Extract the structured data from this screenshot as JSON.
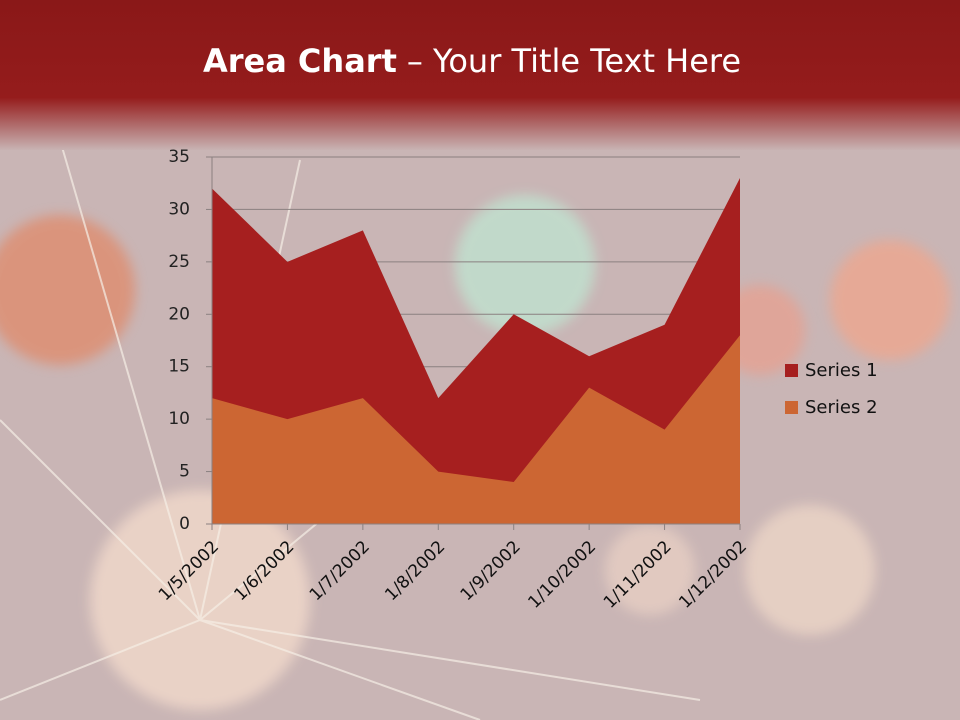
{
  "chart_data": {
    "type": "area",
    "title_bold": "Area Chart",
    "title": "– Your Title Text Here",
    "categories": [
      "1/5/2002",
      "1/6/2002",
      "1/7/2002",
      "1/8/2002",
      "1/9/2002",
      "1/10/2002",
      "1/11/2002",
      "1/12/2002"
    ],
    "series": [
      {
        "name": "Series 1",
        "color": "#a61f1f",
        "values": [
          32,
          25,
          28,
          12,
          20,
          16,
          19,
          33
        ]
      },
      {
        "name": "Series 2",
        "color": "#cc6633",
        "values": [
          12,
          10,
          12,
          5,
          4,
          13,
          9,
          18
        ]
      }
    ],
    "ylim": [
      0,
      35
    ],
    "yticks": [
      0,
      5,
      10,
      15,
      20,
      25,
      30,
      35
    ],
    "grid": true,
    "legend": "right"
  }
}
